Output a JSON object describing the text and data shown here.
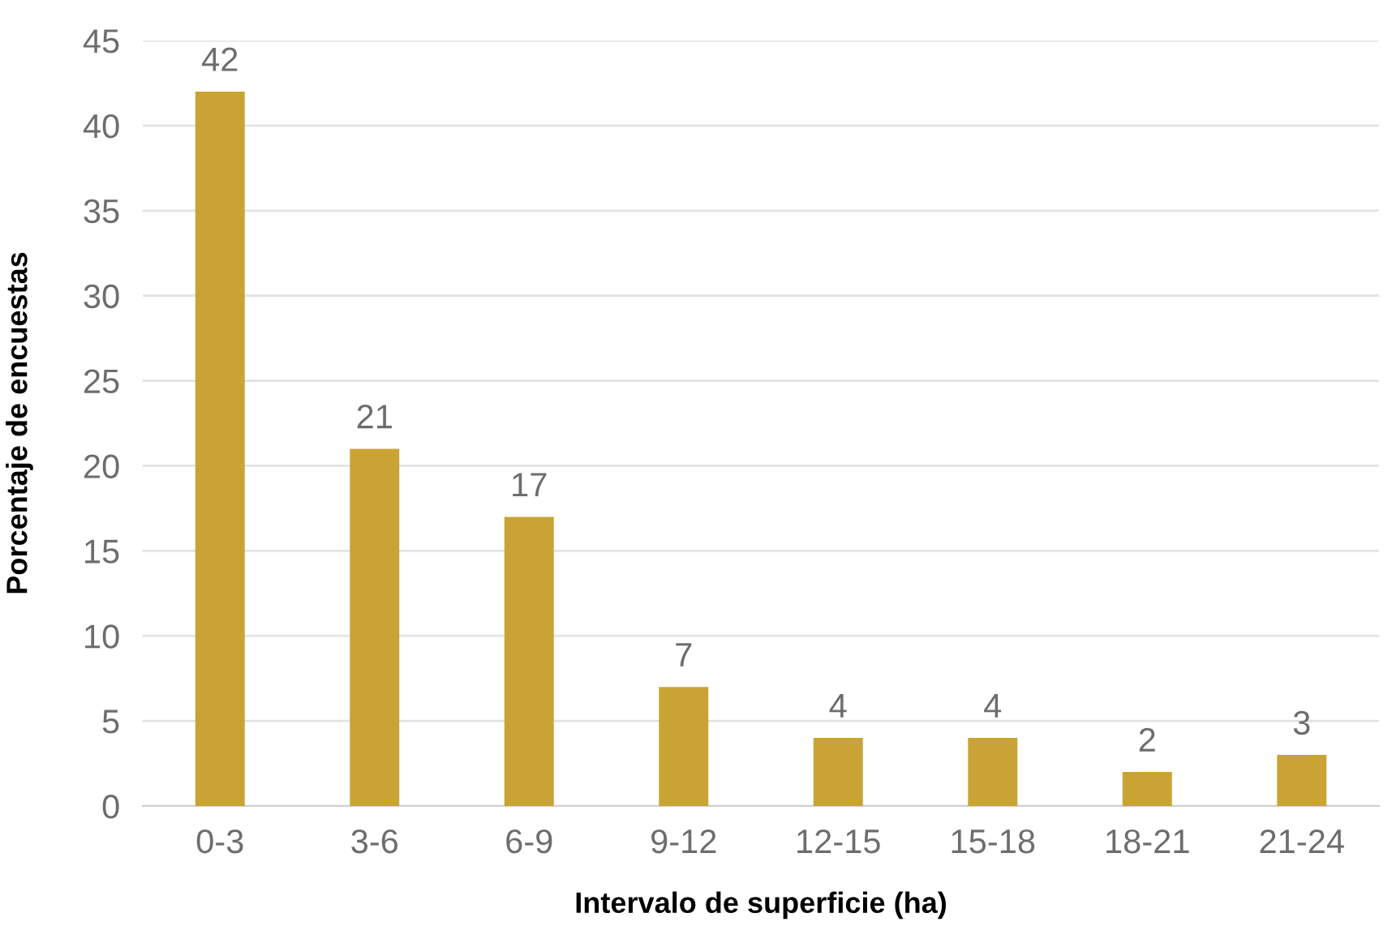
{
  "chart_data": {
    "type": "bar",
    "xlabel": "Intervalo de superficie (ha)",
    "ylabel": "Porcentaje de encuestas",
    "categories": [
      "0-3",
      "3-6",
      "6-9",
      "9-12",
      "12-15",
      "15-18",
      "18-21",
      "21-24"
    ],
    "values": [
      42,
      21,
      17,
      7,
      4,
      4,
      2,
      3
    ],
    "color": "#c9a434",
    "ylim": [
      0,
      45
    ],
    "yticks": [
      0,
      5,
      10,
      15,
      20,
      25,
      30,
      35,
      40,
      45
    ],
    "grid": "y",
    "data_labels": true,
    "legend": false
  }
}
